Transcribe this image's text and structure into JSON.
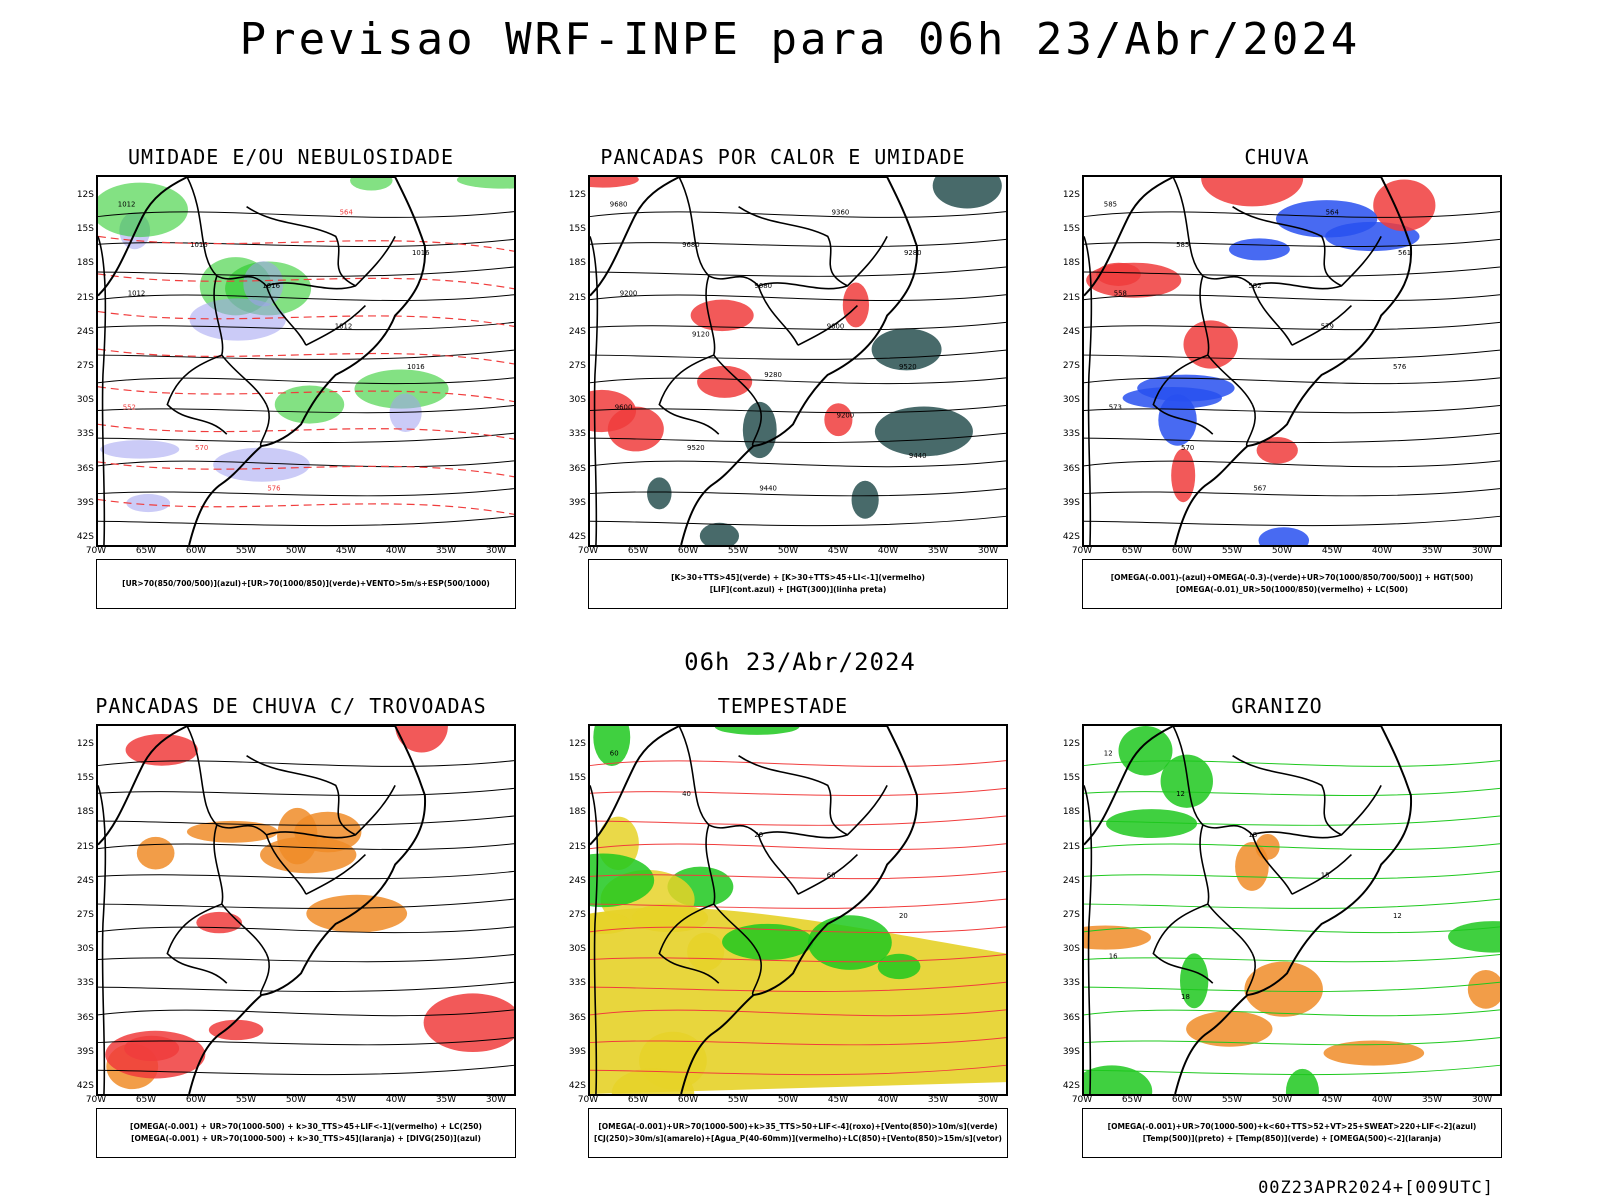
{
  "title": "Previsao WRF-INPE  para 06h 23/Abr/2024",
  "mid_title": "06h 23/Abr/2024",
  "footer": "00Z23APR2024+[009UTC]",
  "axes": {
    "lat_labels": [
      "12S",
      "15S",
      "18S",
      "21S",
      "24S",
      "27S",
      "30S",
      "33S",
      "36S",
      "39S",
      "42S"
    ],
    "lon_labels": [
      "70W",
      "65W",
      "60W",
      "55W",
      "50W",
      "45W",
      "40W",
      "35W",
      "30W"
    ]
  },
  "colors": {
    "red": "#f03c3c",
    "green": "#1ec81e",
    "blue": "#2850f0",
    "lavender": "#a0a0f0",
    "darkteal": "#285050",
    "yellow": "#e6d228",
    "orange": "#f08c28",
    "black": "#000000"
  },
  "panels": [
    {
      "id": "umidade",
      "title": "UMIDADE E/OU NEBULOSIDADE",
      "legend": [
        "[UR>70(850/700/500)](azul)+[UR>70(1000/850)](verde)+VENTO>5m/s+ESP(500/1000)"
      ],
      "contour_labels": [
        "1012",
        "1016",
        "1016",
        "1012",
        "1016",
        "552",
        "570",
        "576",
        "564",
        "1016",
        "1012"
      ]
    },
    {
      "id": "pancadas-calor",
      "title": "PANCADAS POR CALOR E UMIDADE",
      "legend": [
        "[K>30+TTS>45](verde) + [K>30+TTS>45+LI<-1](vermelho)",
        "[LIF](cont.azul) + [HGT(300)](linha preta)"
      ],
      "contour_labels": [
        "9680",
        "9680",
        "9680",
        "9600",
        "9520",
        "9600",
        "9520",
        "9440",
        "9360",
        "9280",
        "9200",
        "9120",
        "9280",
        "9200",
        "9440"
      ]
    },
    {
      "id": "chuva",
      "title": "CHUVA",
      "legend": [
        "[OMEGA(-0.001)-(azul)+OMEGA(-0.3)-(verde)+UR>70(1000/850/700/500)] + HGT(500)",
        "[OMEGA(-0.01)_UR>50(1000/850)(vermelho) + LC(500)"
      ],
      "contour_labels": [
        "585",
        "585",
        "582",
        "579",
        "576",
        "573",
        "570",
        "567",
        "564",
        "561",
        "558"
      ]
    },
    {
      "id": "trovoadas",
      "title": "PANCADAS DE CHUVA C/ TROVOADAS",
      "legend": [
        "[OMEGA(-0.001) + UR>70(1000-500) + k>30_TTS>45+LIF<-1](vermelho) + LC(250)",
        "[OMEGA(-0.001) + UR>70(1000-500) + k>30_TTS>45](laranja) + [DIVG(250)](azul)"
      ],
      "contour_labels": []
    },
    {
      "id": "tempestade",
      "title": "TEMPESTADE",
      "legend": [
        "[OMEGA(-0.001)+UR>70(1000-500)+k>35_TTS>50+LIF<-4](roxo)+[Vento(850)>10m/s](verde)",
        "[CJ(250)>30m/s](amarelo)+[Agua_P(40-60mm)](vermelho)+LC(850)+[Vento(850)>15m/s](vetor)"
      ],
      "contour_labels": [
        "60",
        "40",
        "20",
        "60",
        "20"
      ]
    },
    {
      "id": "granizo",
      "title": "GRANIZO",
      "legend": [
        "[OMEGA(-0.001)+UR>70(1000-500)+k<60+TTS>52+VT>25+SWEAT>220+LIF<-2](azul)",
        "[Temp(500)](preto) + [Temp(850)](verde) + [OMEGA(500)<-2](laranja)"
      ],
      "contour_labels": [
        "12",
        "12",
        "18",
        "15",
        "12",
        "16",
        "18"
      ]
    }
  ]
}
